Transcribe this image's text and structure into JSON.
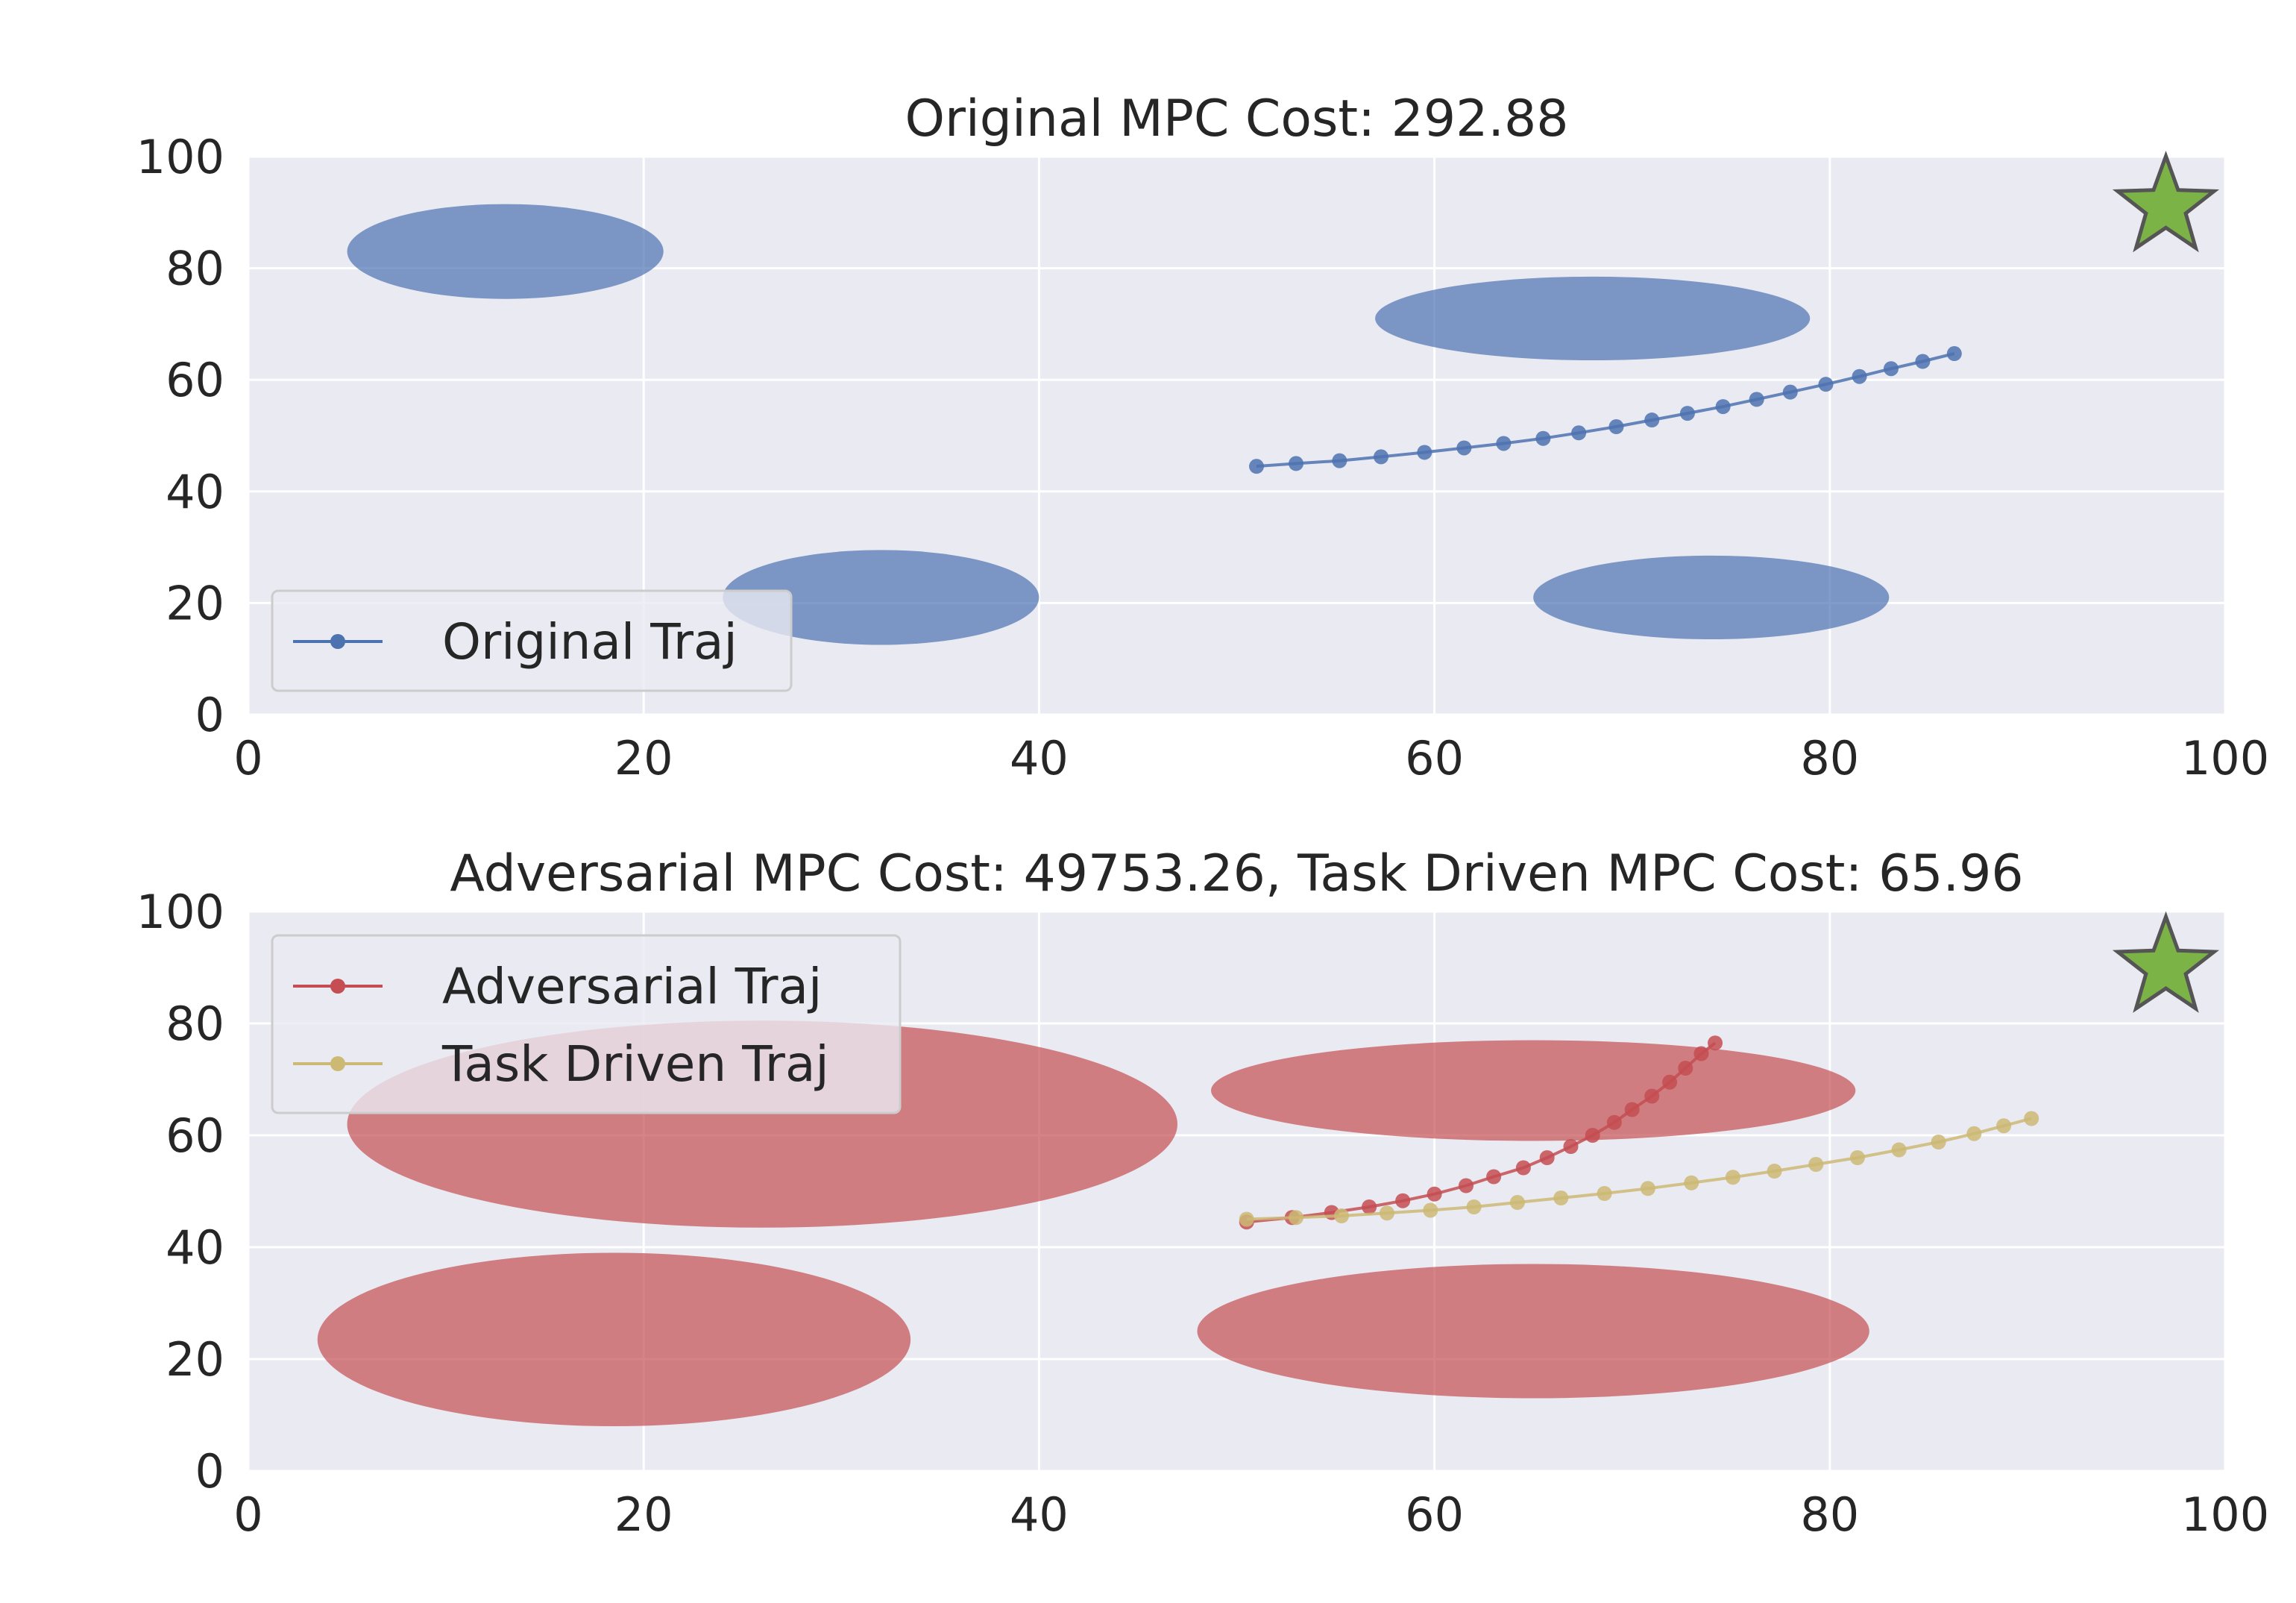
{
  "chart_data": [
    {
      "type": "scatter",
      "title": "Original MPC Cost: 292.88",
      "xlim": [
        0,
        100
      ],
      "ylim": [
        0,
        100
      ],
      "xticks": [
        "0",
        "20",
        "40",
        "60",
        "80",
        "100"
      ],
      "yticks": [
        "0",
        "20",
        "40",
        "60",
        "80",
        "100"
      ],
      "grid": true,
      "legend_position": "lower-left",
      "goal": {
        "x": 97,
        "y": 91,
        "marker": "star",
        "color": "#7cb347"
      },
      "obstacles": [
        {
          "cx": 13,
          "cy": 83,
          "rx": 8,
          "ry": 8.5,
          "color": "#4c72b0"
        },
        {
          "cx": 68,
          "cy": 71,
          "rx": 11,
          "ry": 7.5,
          "color": "#4c72b0"
        },
        {
          "cx": 32,
          "cy": 21,
          "rx": 8,
          "ry": 8.5,
          "color": "#4c72b0"
        },
        {
          "cx": 74,
          "cy": 21,
          "rx": 9,
          "ry": 7.5,
          "color": "#4c72b0"
        }
      ],
      "series": [
        {
          "name": "Original Traj",
          "color": "#4c72b0",
          "points": [
            [
              51,
              44.5
            ],
            [
              53,
              45
            ],
            [
              55.2,
              45.5
            ],
            [
              57.3,
              46.2
            ],
            [
              59.5,
              47
            ],
            [
              61.5,
              47.8
            ],
            [
              63.5,
              48.6
            ],
            [
              65.5,
              49.5
            ],
            [
              67.3,
              50.5
            ],
            [
              69.2,
              51.6
            ],
            [
              71,
              52.8
            ],
            [
              72.8,
              54
            ],
            [
              74.6,
              55.2
            ],
            [
              76.3,
              56.5
            ],
            [
              78,
              57.8
            ],
            [
              79.8,
              59.2
            ],
            [
              81.5,
              60.6
            ],
            [
              83.1,
              62
            ],
            [
              84.7,
              63.3
            ],
            [
              86.3,
              64.7
            ]
          ]
        }
      ]
    },
    {
      "type": "scatter",
      "title": "Adversarial MPC Cost: 49753.26, Task Driven MPC Cost: 65.96",
      "xlim": [
        0,
        100
      ],
      "ylim": [
        0,
        100
      ],
      "xticks": [
        "0",
        "20",
        "40",
        "60",
        "80",
        "100"
      ],
      "yticks": [
        "0",
        "20",
        "40",
        "60",
        "80",
        "100"
      ],
      "grid": true,
      "legend_position": "upper-left",
      "goal": {
        "x": 97,
        "y": 90,
        "marker": "star",
        "color": "#7cb347"
      },
      "obstacles": [
        {
          "cx": 26,
          "cy": 62,
          "rx": 21,
          "ry": 18.5,
          "color": "#c44e52"
        },
        {
          "cx": 18.5,
          "cy": 23.5,
          "rx": 15,
          "ry": 15.5,
          "color": "#c44e52"
        },
        {
          "cx": 65,
          "cy": 68,
          "rx": 16.3,
          "ry": 9,
          "color": "#c44e52"
        },
        {
          "cx": 65,
          "cy": 25,
          "rx": 17,
          "ry": 12,
          "color": "#c44e52"
        }
      ],
      "series": [
        {
          "name": "Adversarial Traj",
          "color": "#c44e52",
          "points": [
            [
              50.5,
              44.5
            ],
            [
              52.8,
              45.3
            ],
            [
              54.8,
              46.2
            ],
            [
              56.7,
              47.2
            ],
            [
              58.4,
              48.3
            ],
            [
              60,
              49.5
            ],
            [
              61.6,
              51
            ],
            [
              63,
              52.6
            ],
            [
              64.5,
              54.2
            ],
            [
              65.7,
              56
            ],
            [
              66.9,
              58
            ],
            [
              68,
              60
            ],
            [
              69.1,
              62.3
            ],
            [
              70,
              64.6
            ],
            [
              71,
              67
            ],
            [
              71.9,
              69.5
            ],
            [
              72.7,
              72
            ],
            [
              73.5,
              74.6
            ],
            [
              74.2,
              76.5
            ]
          ]
        },
        {
          "name": "Task Driven Traj",
          "color": "#ccb974",
          "points": [
            [
              50.5,
              45
            ],
            [
              53,
              45.3
            ],
            [
              55.3,
              45.6
            ],
            [
              57.6,
              46.1
            ],
            [
              59.8,
              46.6
            ],
            [
              62,
              47.2
            ],
            [
              64.2,
              48
            ],
            [
              66.4,
              48.8
            ],
            [
              68.6,
              49.6
            ],
            [
              70.8,
              50.5
            ],
            [
              73,
              51.5
            ],
            [
              75.1,
              52.5
            ],
            [
              77.2,
              53.6
            ],
            [
              79.3,
              54.8
            ],
            [
              81.4,
              56
            ],
            [
              83.5,
              57.4
            ],
            [
              85.5,
              58.8
            ],
            [
              87.3,
              60.3
            ],
            [
              88.8,
              61.7
            ],
            [
              90.2,
              63
            ]
          ]
        }
      ]
    }
  ]
}
